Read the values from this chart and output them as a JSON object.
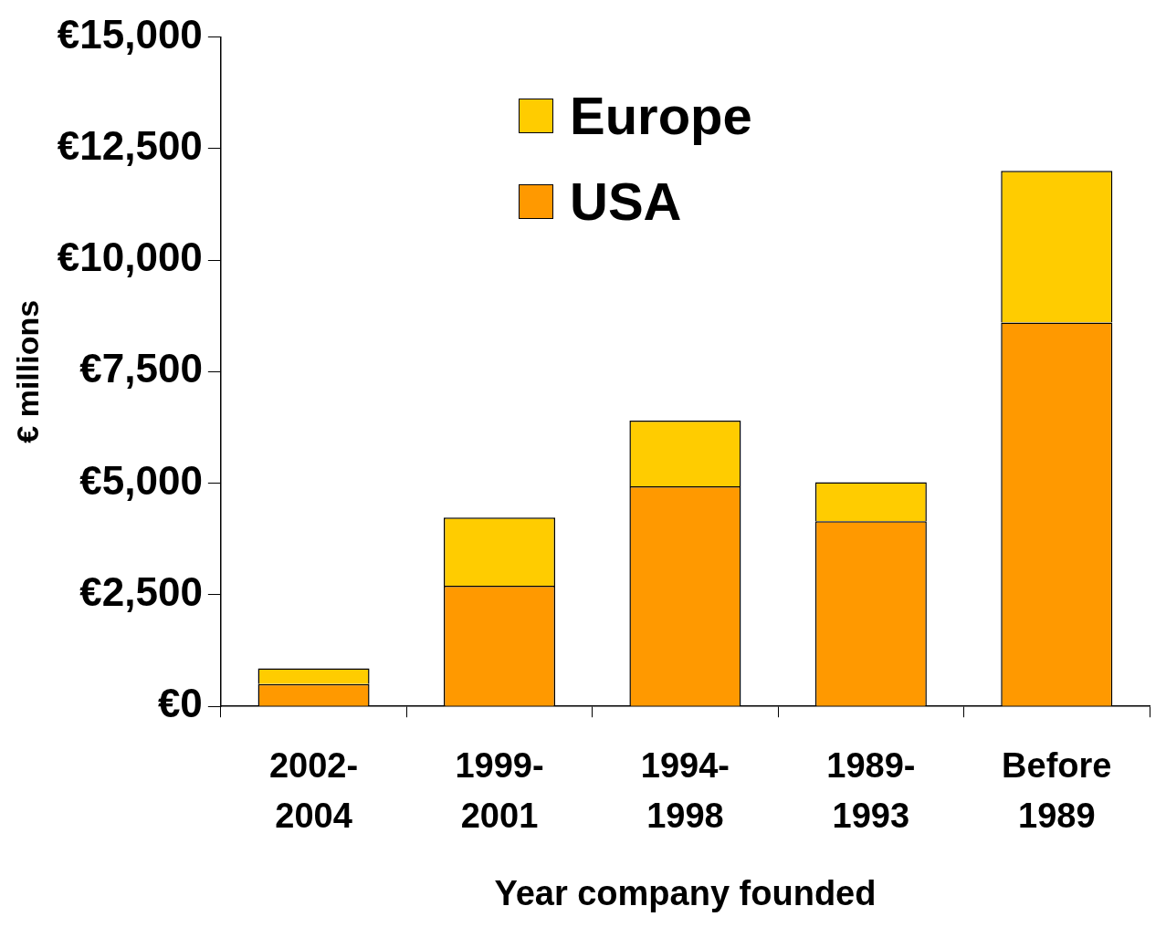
{
  "chart_data": {
    "type": "bar",
    "stacked": true,
    "xlabel": "Year company founded",
    "ylabel": "€ millions",
    "categories": [
      "2002-2004",
      "1999-2001",
      "1994-1998",
      "1989-1993",
      "Before 1989"
    ],
    "series": [
      {
        "name": "USA",
        "color": "#ff9900",
        "values": [
          500,
          2700,
          4930,
          4150,
          8600
        ]
      },
      {
        "name": "Europe",
        "color": "#ffcc00",
        "values": [
          350,
          1530,
          1470,
          870,
          3400
        ]
      }
    ],
    "ylim": [
      0,
      15000
    ],
    "yticks": [
      {
        "value": 0,
        "label": "€0"
      },
      {
        "value": 2500,
        "label": "€2,500"
      },
      {
        "value": 5000,
        "label": "€5,000"
      },
      {
        "value": 7500,
        "label": "€7,500"
      },
      {
        "value": 10000,
        "label": "€10,000"
      },
      {
        "value": 12500,
        "label": "€12,500"
      },
      {
        "value": 15000,
        "label": "€15,000"
      }
    ],
    "grid": false,
    "legend": "top"
  }
}
